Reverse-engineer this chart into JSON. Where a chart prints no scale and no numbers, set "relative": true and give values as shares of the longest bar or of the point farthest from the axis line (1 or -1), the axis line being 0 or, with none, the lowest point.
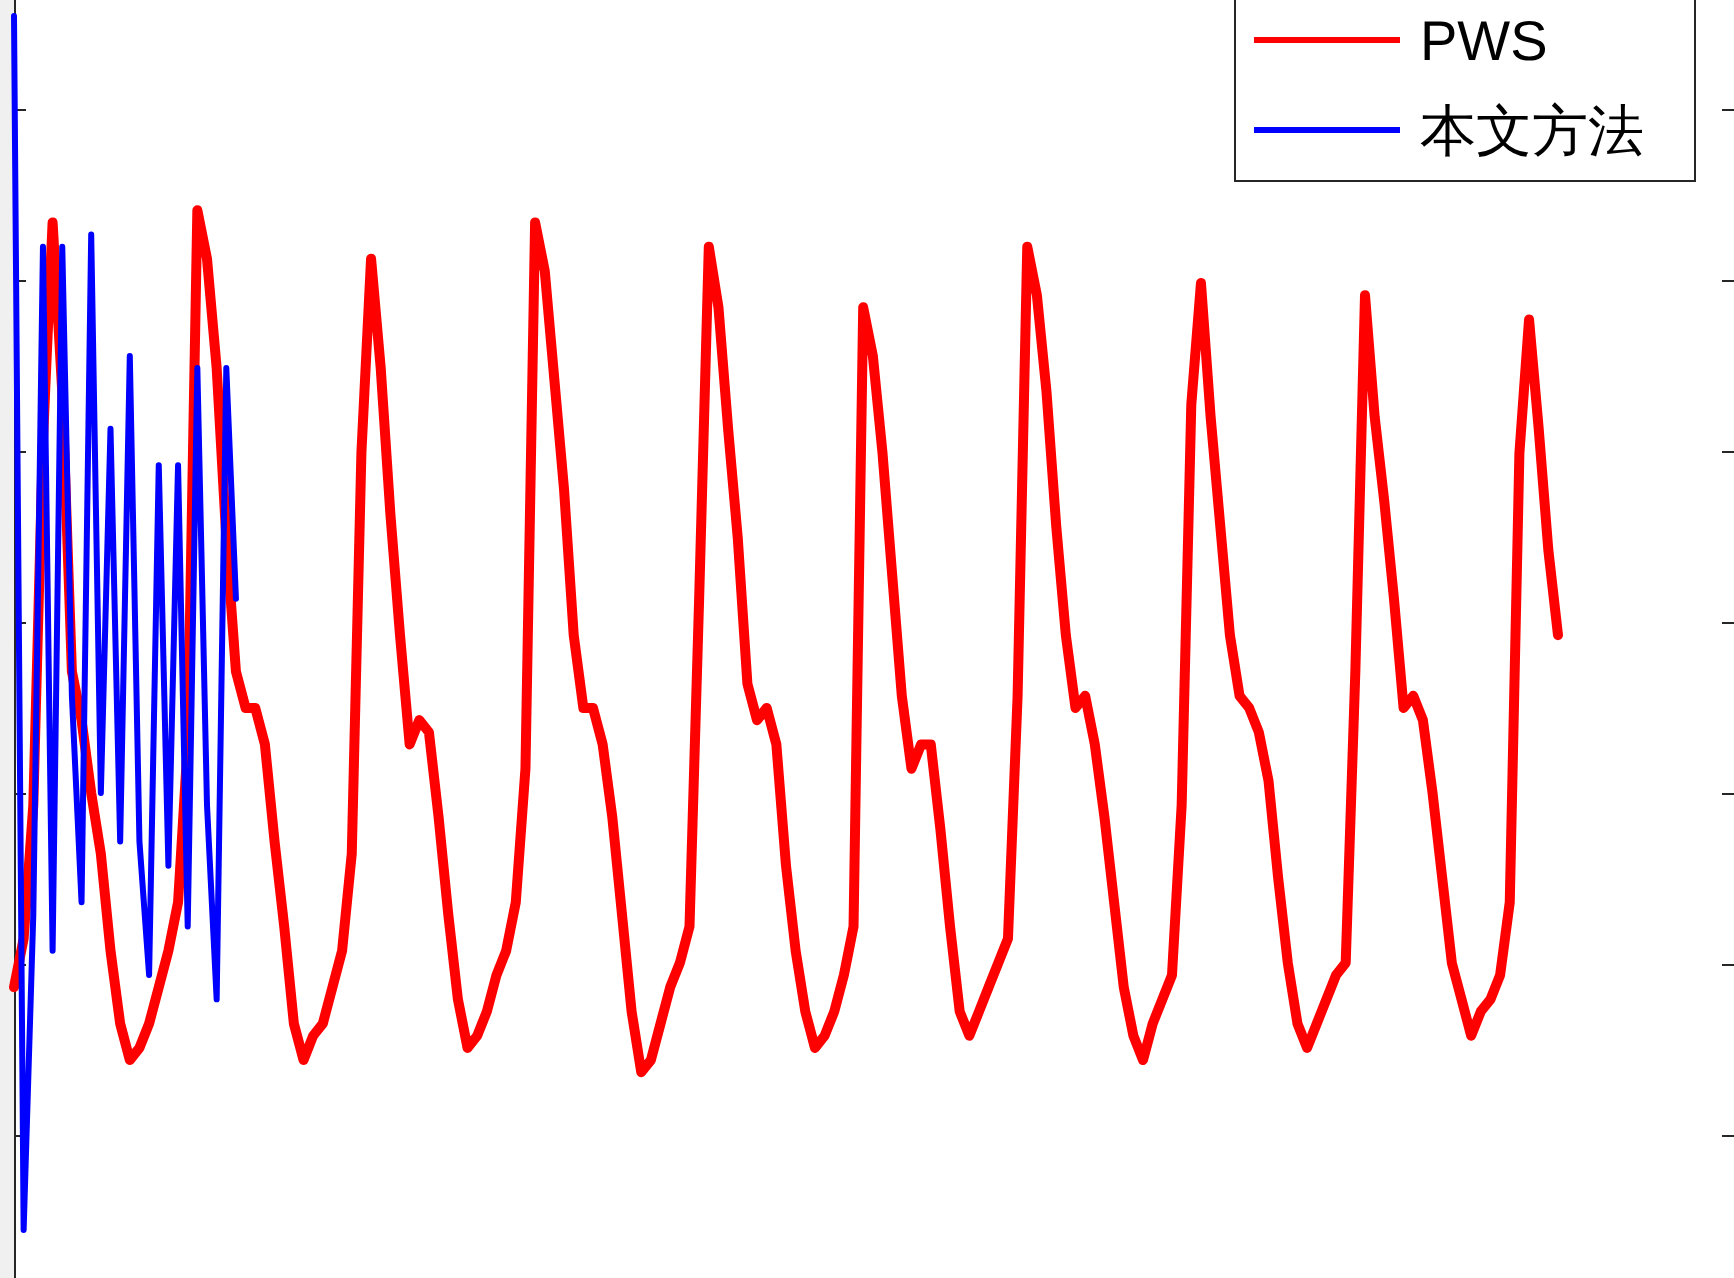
{
  "chart_data": {
    "type": "line",
    "relative": true,
    "legend": "top right",
    "categories": [
      null,
      null,
      null,
      null,
      null,
      null,
      null,
      null,
      null,
      null,
      null,
      null,
      null,
      null,
      null,
      null,
      null,
      null,
      null,
      null,
      null,
      null,
      null,
      null,
      null,
      null,
      null,
      null,
      null,
      null,
      null,
      null,
      null,
      null,
      null,
      null,
      null,
      null,
      null,
      null,
      null,
      null,
      null,
      null,
      null,
      null,
      null,
      null,
      null,
      null,
      null,
      null,
      null,
      null,
      null,
      null,
      null,
      null,
      null,
      null,
      null,
      null,
      null,
      null,
      null,
      null,
      null,
      null,
      null,
      null,
      null,
      null,
      null,
      null,
      null,
      null,
      null,
      null,
      null,
      null,
      null,
      null,
      null,
      null,
      null,
      null,
      null,
      null,
      null,
      null,
      null,
      null,
      null,
      null,
      null,
      null,
      null,
      null,
      null,
      null,
      null,
      null,
      null,
      null,
      null,
      null,
      null,
      null,
      null,
      null,
      null,
      null,
      null,
      null,
      null,
      null,
      null,
      null,
      null,
      null,
      null,
      null,
      null,
      null,
      null,
      null,
      null,
      null,
      null,
      null,
      null,
      null,
      null,
      null,
      null,
      null,
      null,
      null,
      null,
      null,
      null,
      null,
      null,
      null,
      null,
      null,
      null,
      null,
      null,
      null,
      null,
      null,
      null,
      null,
      null,
      null,
      null,
      null,
      null,
      null,
      null
    ],
    "series": [
      {
        "name": "PWS",
        "color": "#ff0000",
        "values": [
          0.2,
          0.24,
          0.35,
          0.65,
          0.83,
          0.69,
          0.46,
          0.42,
          0.36,
          0.31,
          0.23,
          0.17,
          0.14,
          0.15,
          0.17,
          0.2,
          0.23,
          0.27,
          0.4,
          0.84,
          0.8,
          0.71,
          0.57,
          0.46,
          0.43,
          0.43,
          0.4,
          0.32,
          0.25,
          0.17,
          0.14,
          0.16,
          0.17,
          0.2,
          0.23,
          0.31,
          0.64,
          0.8,
          0.71,
          0.59,
          0.49,
          0.4,
          0.42,
          0.41,
          0.34,
          0.26,
          0.19,
          0.15,
          0.16,
          0.18,
          0.21,
          0.23,
          0.27,
          0.38,
          0.83,
          0.79,
          0.7,
          0.61,
          0.49,
          0.43,
          0.43,
          0.4,
          0.34,
          0.26,
          0.18,
          0.13,
          0.14,
          0.17,
          0.2,
          0.22,
          0.25,
          0.52,
          0.81,
          0.76,
          0.66,
          0.57,
          0.45,
          0.42,
          0.43,
          0.4,
          0.3,
          0.23,
          0.18,
          0.15,
          0.16,
          0.18,
          0.21,
          0.25,
          0.76,
          0.72,
          0.64,
          0.54,
          0.44,
          0.38,
          0.4,
          0.4,
          0.33,
          0.25,
          0.18,
          0.16,
          0.18,
          0.2,
          0.22,
          0.24,
          0.44,
          0.81,
          0.77,
          0.69,
          0.58,
          0.49,
          0.43,
          0.44,
          0.4,
          0.34,
          0.27,
          0.2,
          0.16,
          0.14,
          0.17,
          0.19,
          0.21,
          0.35,
          0.68,
          0.78,
          0.67,
          0.58,
          0.49,
          0.44,
          0.43,
          0.41,
          0.37,
          0.29,
          0.22,
          0.17,
          0.15,
          0.17,
          0.19,
          0.21,
          0.22,
          0.46,
          0.77,
          0.67,
          0.6,
          0.52,
          0.43,
          0.44,
          0.42,
          0.36,
          0.29,
          0.22,
          0.19,
          0.16,
          0.18,
          0.19,
          0.21,
          0.27,
          0.64,
          0.75,
          0.66,
          0.56,
          0.49
        ]
      },
      {
        "name": "本文方法",
        "color": "#0000ff",
        "values": [
          1.0,
          0.0,
          0.26,
          0.81,
          0.23,
          0.81,
          0.44,
          0.27,
          0.82,
          0.36,
          0.66,
          0.32,
          0.72,
          0.32,
          0.21,
          0.63,
          0.3,
          0.63,
          0.25,
          0.71,
          0.35,
          0.19,
          0.71,
          0.52,
          null,
          null,
          null,
          null,
          null,
          null,
          null,
          null,
          null,
          null,
          null,
          null,
          null,
          null,
          null,
          null,
          null,
          null,
          null,
          null,
          null,
          null,
          null,
          null,
          null,
          null,
          null,
          null,
          null,
          null,
          null,
          null,
          null,
          null,
          null,
          null,
          null,
          null,
          null,
          null,
          null,
          null,
          null,
          null,
          null,
          null,
          null,
          null,
          null,
          null,
          null,
          null,
          null,
          null,
          null,
          null,
          null,
          null,
          null,
          null,
          null,
          null,
          null,
          null,
          null,
          null,
          null,
          null,
          null,
          null,
          null,
          null,
          null,
          null,
          null,
          null,
          null,
          null,
          null,
          null,
          null,
          null,
          null,
          null,
          null,
          null,
          null,
          null,
          null,
          null,
          null,
          null,
          null,
          null,
          null,
          null,
          null,
          null,
          null,
          null,
          null,
          null,
          null,
          null,
          null,
          null,
          null,
          null,
          null,
          null,
          null,
          null,
          null,
          null,
          null,
          null,
          null,
          null,
          null,
          null,
          null,
          null,
          null,
          null,
          null,
          null,
          null,
          null,
          null,
          null,
          null,
          null,
          null,
          null,
          null,
          null,
          null
        ]
      }
    ]
  }
}
